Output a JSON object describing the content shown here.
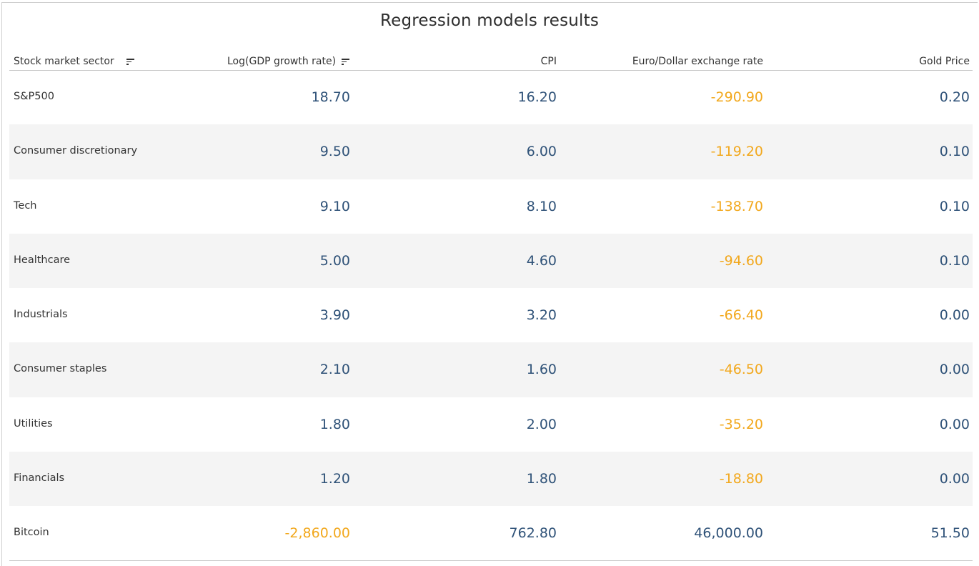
{
  "title": "Regression models results",
  "colors": {
    "positive": "#2f5278",
    "negative": "#f2a81d",
    "alt_row": "#f4f4f4"
  },
  "columns": [
    {
      "key": "sector",
      "label": "Stock market sector",
      "sort_icon": "sort-descending-icon"
    },
    {
      "key": "gdp",
      "label": "Log(GDP growth rate)",
      "sort_icon": "sort-descending-icon"
    },
    {
      "key": "cpi",
      "label": "CPI"
    },
    {
      "key": "eurusd",
      "label": "Euro/Dollar exchange rate"
    },
    {
      "key": "gold",
      "label": "Gold Price"
    }
  ],
  "rows": [
    {
      "sector": "S&P500",
      "gdp": "18.70",
      "cpi": "16.20",
      "eurusd": "-290.90",
      "gold": "0.20"
    },
    {
      "sector": "Consumer discretionary",
      "gdp": "9.50",
      "cpi": "6.00",
      "eurusd": "-119.20",
      "gold": "0.10"
    },
    {
      "sector": "Tech",
      "gdp": "9.10",
      "cpi": "8.10",
      "eurusd": "-138.70",
      "gold": "0.10"
    },
    {
      "sector": "Healthcare",
      "gdp": "5.00",
      "cpi": "4.60",
      "eurusd": "-94.60",
      "gold": "0.10"
    },
    {
      "sector": "Industrials",
      "gdp": "3.90",
      "cpi": "3.20",
      "eurusd": "-66.40",
      "gold": "0.00"
    },
    {
      "sector": "Consumer staples",
      "gdp": "2.10",
      "cpi": "1.60",
      "eurusd": "-46.50",
      "gold": "0.00"
    },
    {
      "sector": "Utilities",
      "gdp": "1.80",
      "cpi": "2.00",
      "eurusd": "-35.20",
      "gold": "0.00"
    },
    {
      "sector": "Financials",
      "gdp": "1.20",
      "cpi": "1.80",
      "eurusd": "-18.80",
      "gold": "0.00"
    },
    {
      "sector": "Bitcoin",
      "gdp": "-2,860.00",
      "cpi": "762.80",
      "eurusd": "46,000.00",
      "gold": "51.50"
    }
  ]
}
